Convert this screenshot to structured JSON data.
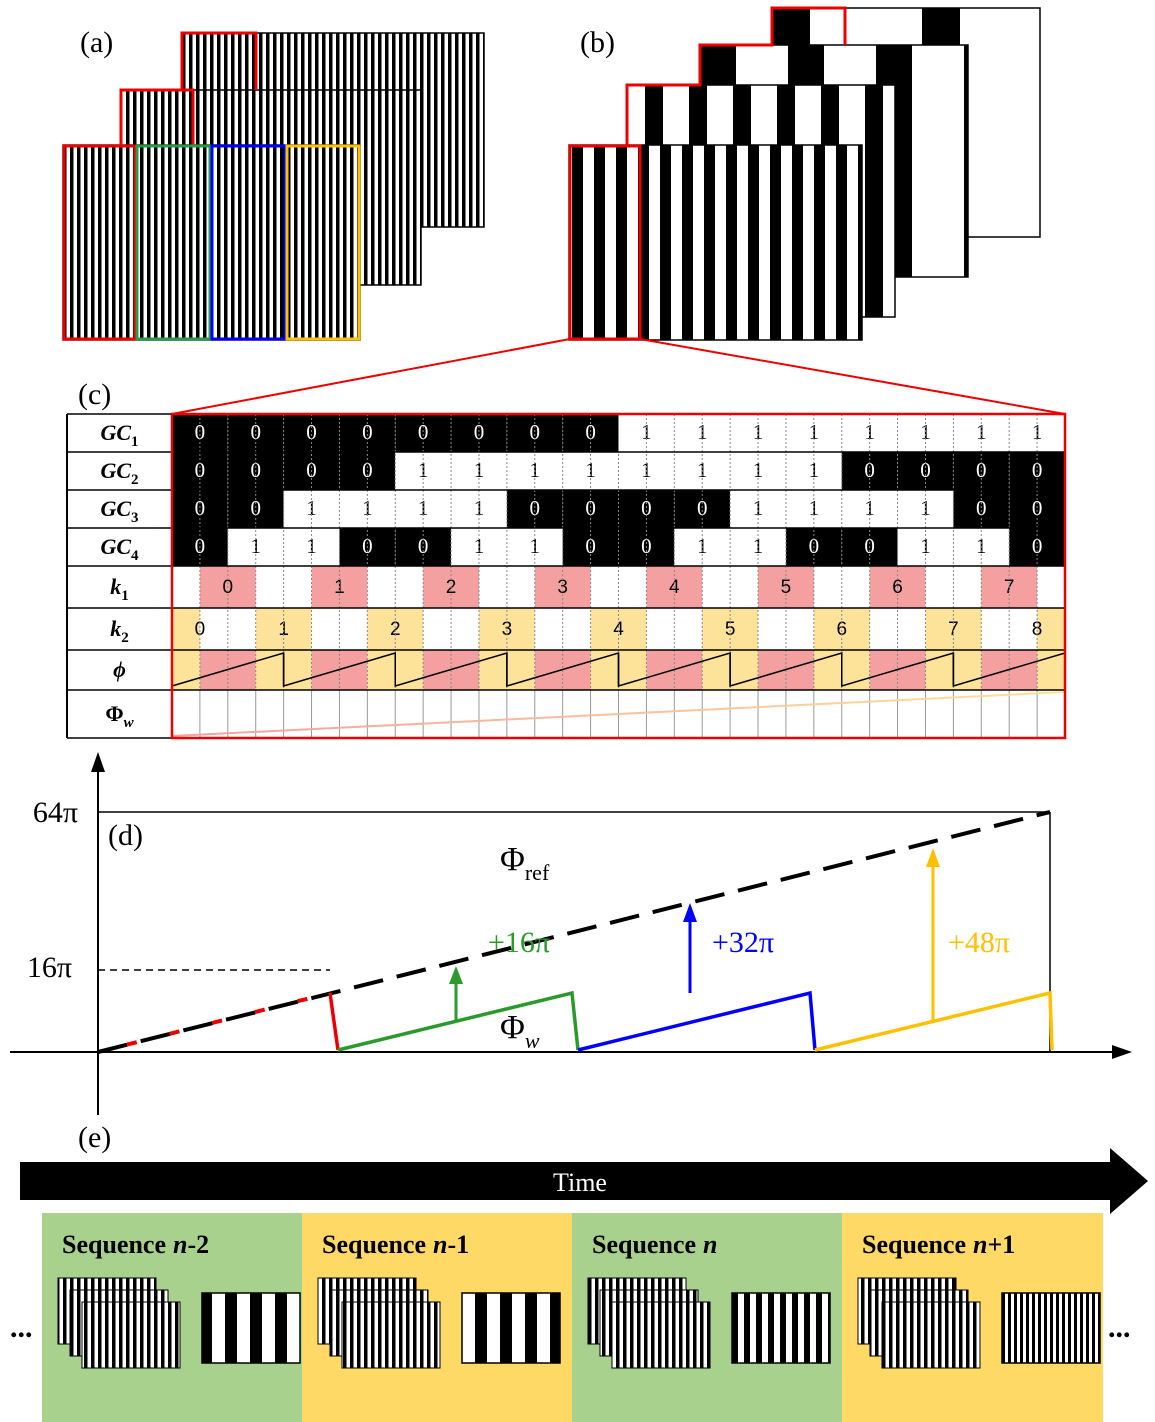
{
  "panels": {
    "a": "(a)",
    "b": "(b)",
    "c": "(c)",
    "d": "(d)",
    "e": "(e)"
  },
  "table": {
    "gc_rows": [
      {
        "name": "GC",
        "sub": "1",
        "cells": [
          0,
          0,
          0,
          0,
          0,
          0,
          0,
          0,
          1,
          1,
          1,
          1,
          1,
          1,
          1,
          1
        ]
      },
      {
        "name": "GC",
        "sub": "2",
        "cells": [
          0,
          0,
          0,
          0,
          1,
          1,
          1,
          1,
          1,
          1,
          1,
          1,
          0,
          0,
          0,
          0
        ]
      },
      {
        "name": "GC",
        "sub": "3",
        "cells": [
          0,
          0,
          1,
          1,
          1,
          1,
          0,
          0,
          0,
          0,
          1,
          1,
          1,
          1,
          0,
          0
        ]
      },
      {
        "name": "GC",
        "sub": "4",
        "cells": [
          0,
          1,
          1,
          0,
          0,
          1,
          1,
          0,
          0,
          1,
          1,
          0,
          0,
          1,
          1,
          0
        ]
      }
    ],
    "k1": {
      "name": "k",
      "sub": "1",
      "cells": [
        0,
        1,
        2,
        3,
        4,
        5,
        6,
        7
      ],
      "color": "#f4a0a0"
    },
    "k2": {
      "name": "k",
      "sub": "2",
      "cells": [
        0,
        1,
        2,
        3,
        4,
        5,
        6,
        7,
        8
      ],
      "color": "#fde29a"
    },
    "phi": {
      "name": "ϕ"
    },
    "phi_w": {
      "name": "Φ",
      "sub": "w"
    }
  },
  "graph": {
    "ytick_top": "64π",
    "ytick_mid": "16π",
    "ref_label": {
      "text": "Φ",
      "sub": "ref"
    },
    "w_label": {
      "text": "Φ",
      "sub": "w"
    },
    "offsets": [
      {
        "text": "+16π",
        "color": "#2a9a2a"
      },
      {
        "text": "+32π",
        "color": "#0000ff"
      },
      {
        "text": "+48π",
        "color": "#ffc000"
      }
    ]
  },
  "timeline": {
    "label": "Time",
    "sequences": [
      {
        "prefix": "Sequence",
        "var": "n",
        "suffix": "-2",
        "color": "#a9d18e"
      },
      {
        "prefix": "Sequence",
        "var": "n",
        "suffix": "-1",
        "color": "#ffd966"
      },
      {
        "prefix": "Sequence",
        "var": "n",
        "color": "#a9d18e"
      },
      {
        "prefix": "Sequence",
        "var": "n",
        "suffix": "+1",
        "color": "#ffd966"
      }
    ],
    "ellipses": [
      "...",
      "..."
    ]
  }
}
